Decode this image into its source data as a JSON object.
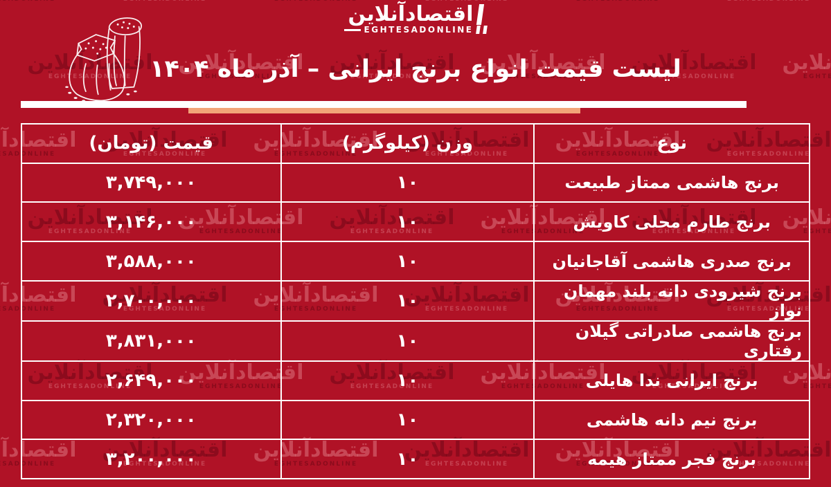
{
  "brand": {
    "logo_fa": "اقتصادآنلاین",
    "logo_en": "EGHTESADONLINE"
  },
  "watermark": {
    "text_fa": "اقتصادآنلاین",
    "text_en": "EGHTESADONLINE"
  },
  "header": {
    "title": "لیست قیمت انواع برنج ایرانی – آذر ماه ۱۴۰۴"
  },
  "colors": {
    "background": "#B01226",
    "accent_bar": "#F2A478",
    "table_border": "#FFFFFF",
    "text": "#FFFFFF"
  },
  "icons": {
    "illustration": "rice-sacks-sketch"
  },
  "table": {
    "columns": [
      "نوع",
      "وزن (کیلوگرم)",
      "قیمت (تومان)"
    ],
    "rows": [
      {
        "type": "برنج هاشمی ممتاز طبیعت",
        "weight": "۱۰",
        "price": "۳,۷۴۹,۰۰۰"
      },
      {
        "type": "برنج طارم محلی کاویش",
        "weight": "۱۰",
        "price": "۳,۱۴۶,۰۰۰"
      },
      {
        "type": "برنج صدری هاشمی آقاجانیان",
        "weight": "۱۰",
        "price": "۳,۵۸۸,۰۰۰"
      },
      {
        "type": "برنج شیرودی دانه بلند مهمان نواز",
        "weight": "۱۰",
        "price": "۲,۷۰۰,۰۰۰"
      },
      {
        "type": "برنج هاشمی صادراتی گیلان رفتاری",
        "weight": "۱۰",
        "price": "۳,۸۳۱,۰۰۰"
      },
      {
        "type": "برنج ایرانی ندا هایلی",
        "weight": "۱۰",
        "price": "۲,۶۴۹,۰۰۰"
      },
      {
        "type": "برنج نیم دانه هاشمی",
        "weight": "۱۰",
        "price": "۲,۳۲۰,۰۰۰"
      },
      {
        "type": "برنج فجر ممتاز هیمه",
        "weight": "۱۰",
        "price": "۳,۲۰۰,۰۰۰"
      }
    ]
  },
  "chart_data": {
    "type": "table",
    "title": "لیست قیمت انواع برنج ایرانی – آذر ماه ۱۴۰۴",
    "columns": [
      "نوع",
      "وزن (کیلوگرم)",
      "قیمت (تومان)"
    ],
    "categories": [
      "برنج هاشمی ممتاز طبیعت",
      "برنج طارم محلی کاویش",
      "برنج صدری هاشمی آقاجانیان",
      "برنج شیرودی دانه بلند مهمان نواز",
      "برنج هاشمی صادراتی گیلان رفتاری",
      "برنج ایرانی ندا هایلی",
      "برنج نیم دانه هاشمی",
      "برنج فجر ممتاز هیمه"
    ],
    "weight_kg": [
      10,
      10,
      10,
      10,
      10,
      10,
      10,
      10
    ],
    "price_toman": [
      3749000,
      3146000,
      3588000,
      2700000,
      3831000,
      2649000,
      2320000,
      3200000
    ]
  }
}
